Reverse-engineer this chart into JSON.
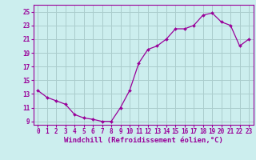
{
  "x": [
    0,
    1,
    2,
    3,
    4,
    5,
    6,
    7,
    8,
    9,
    10,
    11,
    12,
    13,
    14,
    15,
    16,
    17,
    18,
    19,
    20,
    21,
    22,
    23
  ],
  "y": [
    13.5,
    12.5,
    12.0,
    11.5,
    10.0,
    9.5,
    9.3,
    9.0,
    9.0,
    11.0,
    13.5,
    17.5,
    19.5,
    20.0,
    21.0,
    22.5,
    22.5,
    23.0,
    24.5,
    24.8,
    23.5,
    23.0,
    20.0,
    21.0
  ],
  "line_color": "#990099",
  "marker_color": "#990099",
  "bg_color": "#cceeee",
  "grid_color": "#aacccc",
  "xlabel": "Windchill (Refroidissement éolien,°C)",
  "ylabel_ticks": [
    9,
    11,
    13,
    15,
    17,
    19,
    21,
    23,
    25
  ],
  "ylim": [
    8.5,
    26.0
  ],
  "xlim": [
    -0.5,
    23.5
  ],
  "tick_color": "#990099",
  "label_color": "#990099",
  "axis_fontsize": 6.5,
  "tick_fontsize": 5.5
}
